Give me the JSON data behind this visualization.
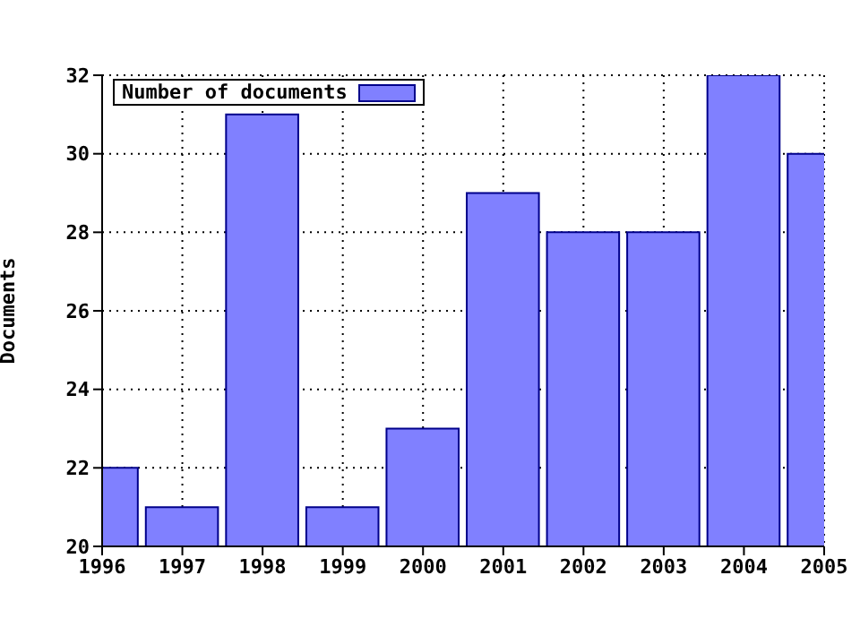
{
  "chart_data": {
    "type": "bar",
    "ylabel": "Documents",
    "x": [
      1996,
      1997,
      1998,
      1999,
      2000,
      2001,
      2002,
      2003,
      2004,
      2005
    ],
    "series": [
      {
        "name": "Number of documents",
        "color": "#8080ff",
        "values": [
          22,
          21,
          31,
          21,
          23,
          29,
          28,
          28,
          32,
          30
        ]
      }
    ],
    "xlim": [
      1996,
      2005
    ],
    "xticks": [
      1996,
      1997,
      1998,
      1999,
      2000,
      2001,
      2002,
      2003,
      2004,
      2005
    ],
    "ylim": [
      20,
      32
    ],
    "yticks": [
      20,
      22,
      24,
      26,
      28,
      30,
      32
    ],
    "grid": true,
    "legend": "top left"
  }
}
